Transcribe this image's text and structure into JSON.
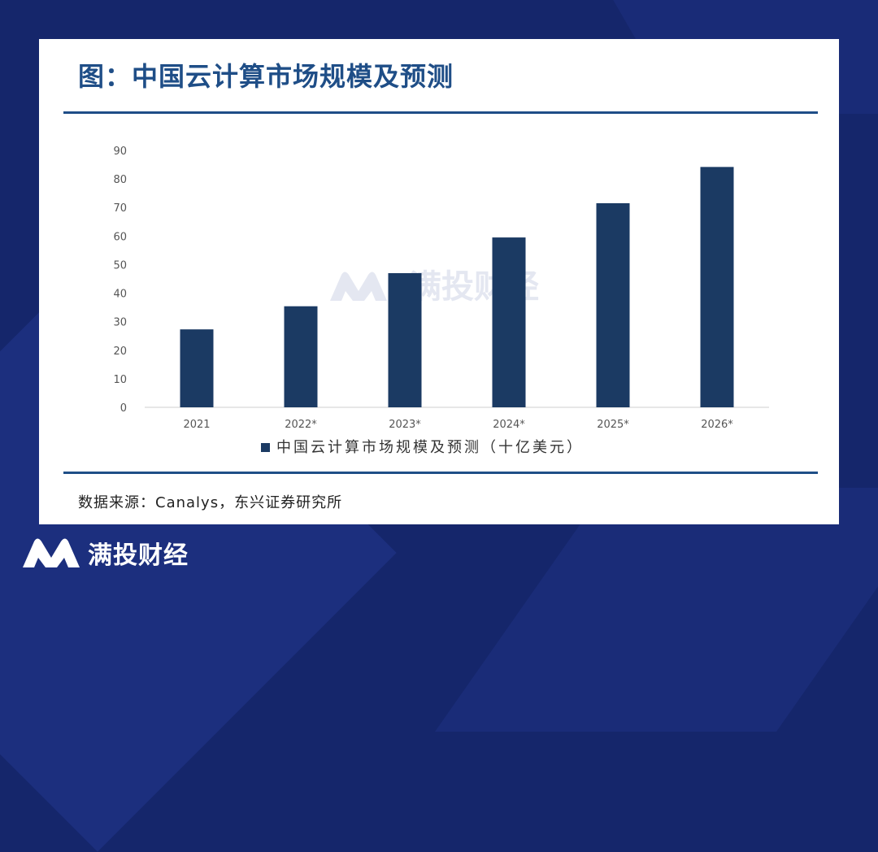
{
  "title": "图：中国云计算市场规模及预测",
  "source": "数据来源：Canalys，东兴证券研究所",
  "watermark_text": "满投财经",
  "brand": {
    "name": "满投财经",
    "icon": "m-logo-icon"
  },
  "colors": {
    "background": "#15266b",
    "card": "#ffffff",
    "accent": "#1f4e87",
    "bar": "#1b3a63",
    "axis_text": "#555555"
  },
  "chart_data": {
    "type": "bar",
    "categories": [
      "2021",
      "2022*",
      "2023*",
      "2024*",
      "2025*",
      "2026*"
    ],
    "series": [
      {
        "name": "中国云计算市场规模及预测（十亿美元）",
        "values": [
          27.3,
          35.4,
          47.0,
          59.5,
          71.5,
          84.2
        ]
      }
    ],
    "ylim": [
      0,
      90
    ],
    "yticks": [
      0,
      10,
      20,
      30,
      40,
      50,
      60,
      70,
      80,
      90
    ],
    "legend_position": "bottom",
    "grid": false
  }
}
